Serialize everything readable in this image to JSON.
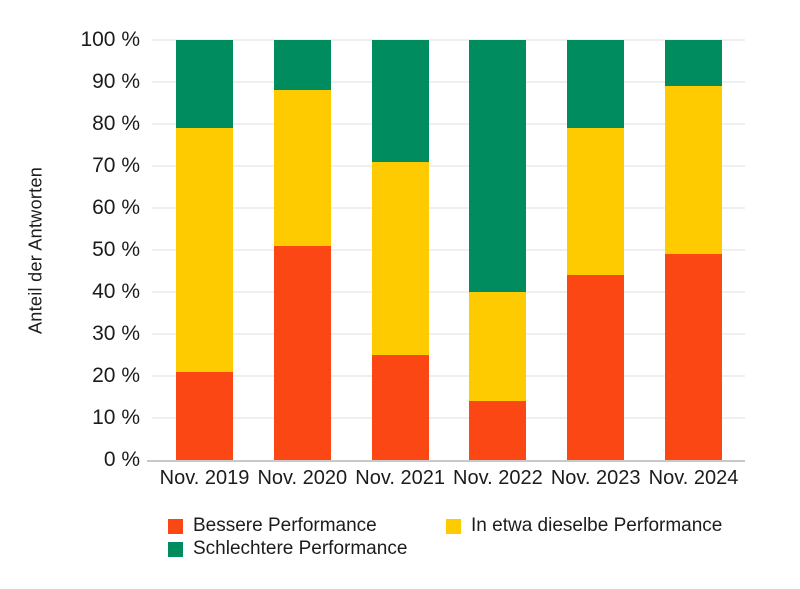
{
  "page": {
    "background_color": "#FFFFFF",
    "text_color": "#1C1C1C"
  },
  "style": {
    "grid_color": "#EFEFEF",
    "axis_line_color": "#C8C8C8"
  },
  "y_axis": {
    "ticks": [
      {
        "value": 0,
        "label": "0 %"
      },
      {
        "value": 10,
        "label": "10 %"
      },
      {
        "value": 20,
        "label": "20 %"
      },
      {
        "value": 30,
        "label": "30 %"
      },
      {
        "value": 40,
        "label": "40 %"
      },
      {
        "value": 50,
        "label": "50 %"
      },
      {
        "value": 60,
        "label": "60 %"
      },
      {
        "value": 70,
        "label": "70 %"
      },
      {
        "value": 80,
        "label": "80 %"
      },
      {
        "value": 90,
        "label": "90 %"
      },
      {
        "value": 100,
        "label": "100 %"
      }
    ]
  },
  "chart_data": {
    "type": "bar",
    "stacked": true,
    "title": "",
    "xlabel": "",
    "ylabel": "Anteil der Antworten",
    "ylim": [
      0,
      100
    ],
    "grid": true,
    "legend_position": "bottom",
    "categories": [
      "Nov. 2019",
      "Nov. 2020",
      "Nov. 2021",
      "Nov. 2022",
      "Nov. 2023",
      "Nov. 2024"
    ],
    "series": [
      {
        "name": "Bessere Performance",
        "color": "#FB4714",
        "values": [
          21,
          51,
          25,
          14,
          44,
          49
        ]
      },
      {
        "name": "In etwa dieselbe Performance",
        "color": "#FECB00",
        "values": [
          58,
          37,
          46,
          26,
          35,
          40
        ]
      },
      {
        "name": "Schlechtere Performance",
        "color": "#008C5E",
        "values": [
          21,
          12,
          29,
          60,
          21,
          11
        ]
      }
    ]
  }
}
